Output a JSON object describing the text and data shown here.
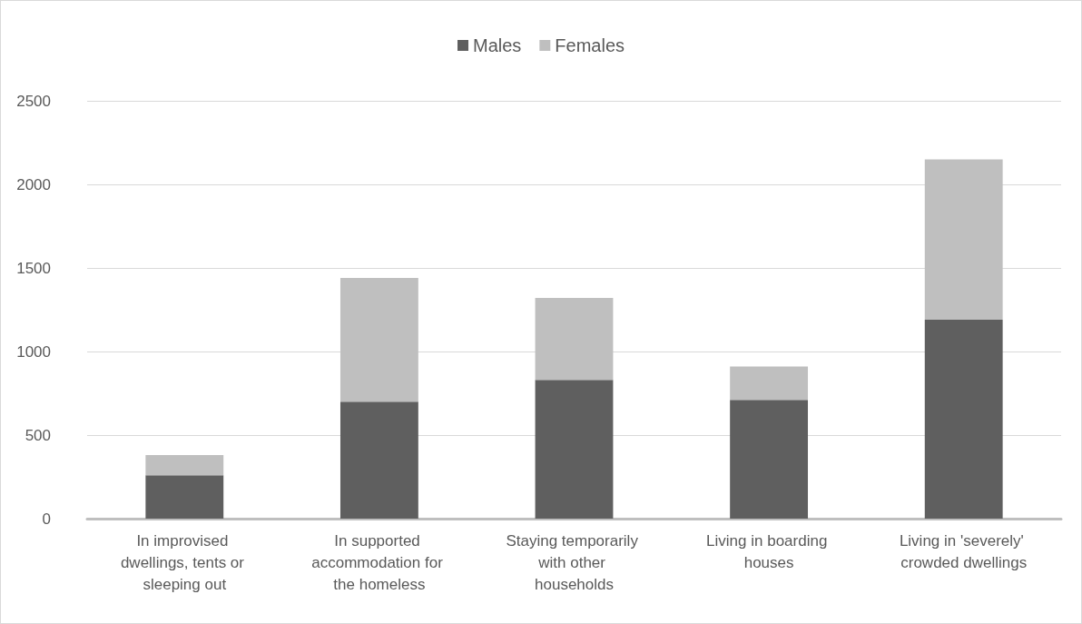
{
  "chart_data": {
    "type": "bar",
    "stacked": true,
    "categories": [
      "In improvised dwellings, tents or sleeping out",
      "In supported accommodation for the homeless",
      "Staying temporarily with other households",
      "Living in boarding houses",
      "Living in 'severely' crowded dwellings"
    ],
    "series": [
      {
        "name": "Males",
        "color": "#5f5f5f",
        "values": [
          260,
          700,
          830,
          710,
          1190
        ]
      },
      {
        "name": "Females",
        "color": "#bfbfbf",
        "values": [
          120,
          740,
          490,
          200,
          960
        ]
      }
    ],
    "ylim": [
      0,
      2500
    ],
    "yticks": [
      0,
      500,
      1000,
      1500,
      2000,
      2500
    ],
    "grid": "y",
    "legend": "top"
  }
}
